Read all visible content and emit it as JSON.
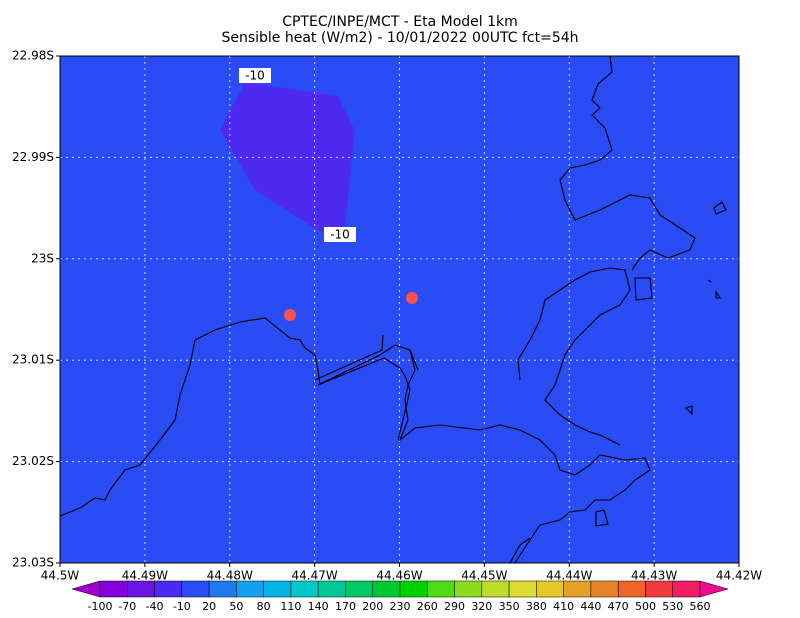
{
  "header": {
    "line1": "CPTEC/INPE/MCT -  Eta Model 1km",
    "line2": "Sensible heat (W/m2) - 10/01/2022 00UTC fct=54h"
  },
  "map": {
    "lat_labels": [
      "22.98S",
      "22.99S",
      "23S",
      "23.01S",
      "23.02S",
      "23.03S"
    ],
    "lon_labels": [
      "44.5W",
      "44.49W",
      "44.48W",
      "44.47W",
      "44.46W",
      "44.45W",
      "44.44W",
      "44.43W",
      "44.42W"
    ],
    "contour_labels": [
      "-10",
      "-10"
    ]
  },
  "colorbar": {
    "levels": [
      -100,
      -70,
      -40,
      -10,
      20,
      50,
      80,
      110,
      140,
      170,
      200,
      230,
      260,
      290,
      320,
      350,
      380,
      410,
      440,
      470,
      500,
      530,
      560
    ],
    "colors": [
      "#a000c8",
      "#8200dc",
      "#6a14e6",
      "#4e2af0",
      "#2a4cf5",
      "#1e78f0",
      "#14a0f0",
      "#00b4e6",
      "#00c8c8",
      "#00c896",
      "#00c864",
      "#00c832",
      "#00d200",
      "#50dc14",
      "#8cdc1e",
      "#bedc28",
      "#dcdc32",
      "#e6c828",
      "#e6a028",
      "#e68228",
      "#f06428",
      "#f03c3c",
      "#f01e64",
      "#f00a8c"
    ]
  }
}
